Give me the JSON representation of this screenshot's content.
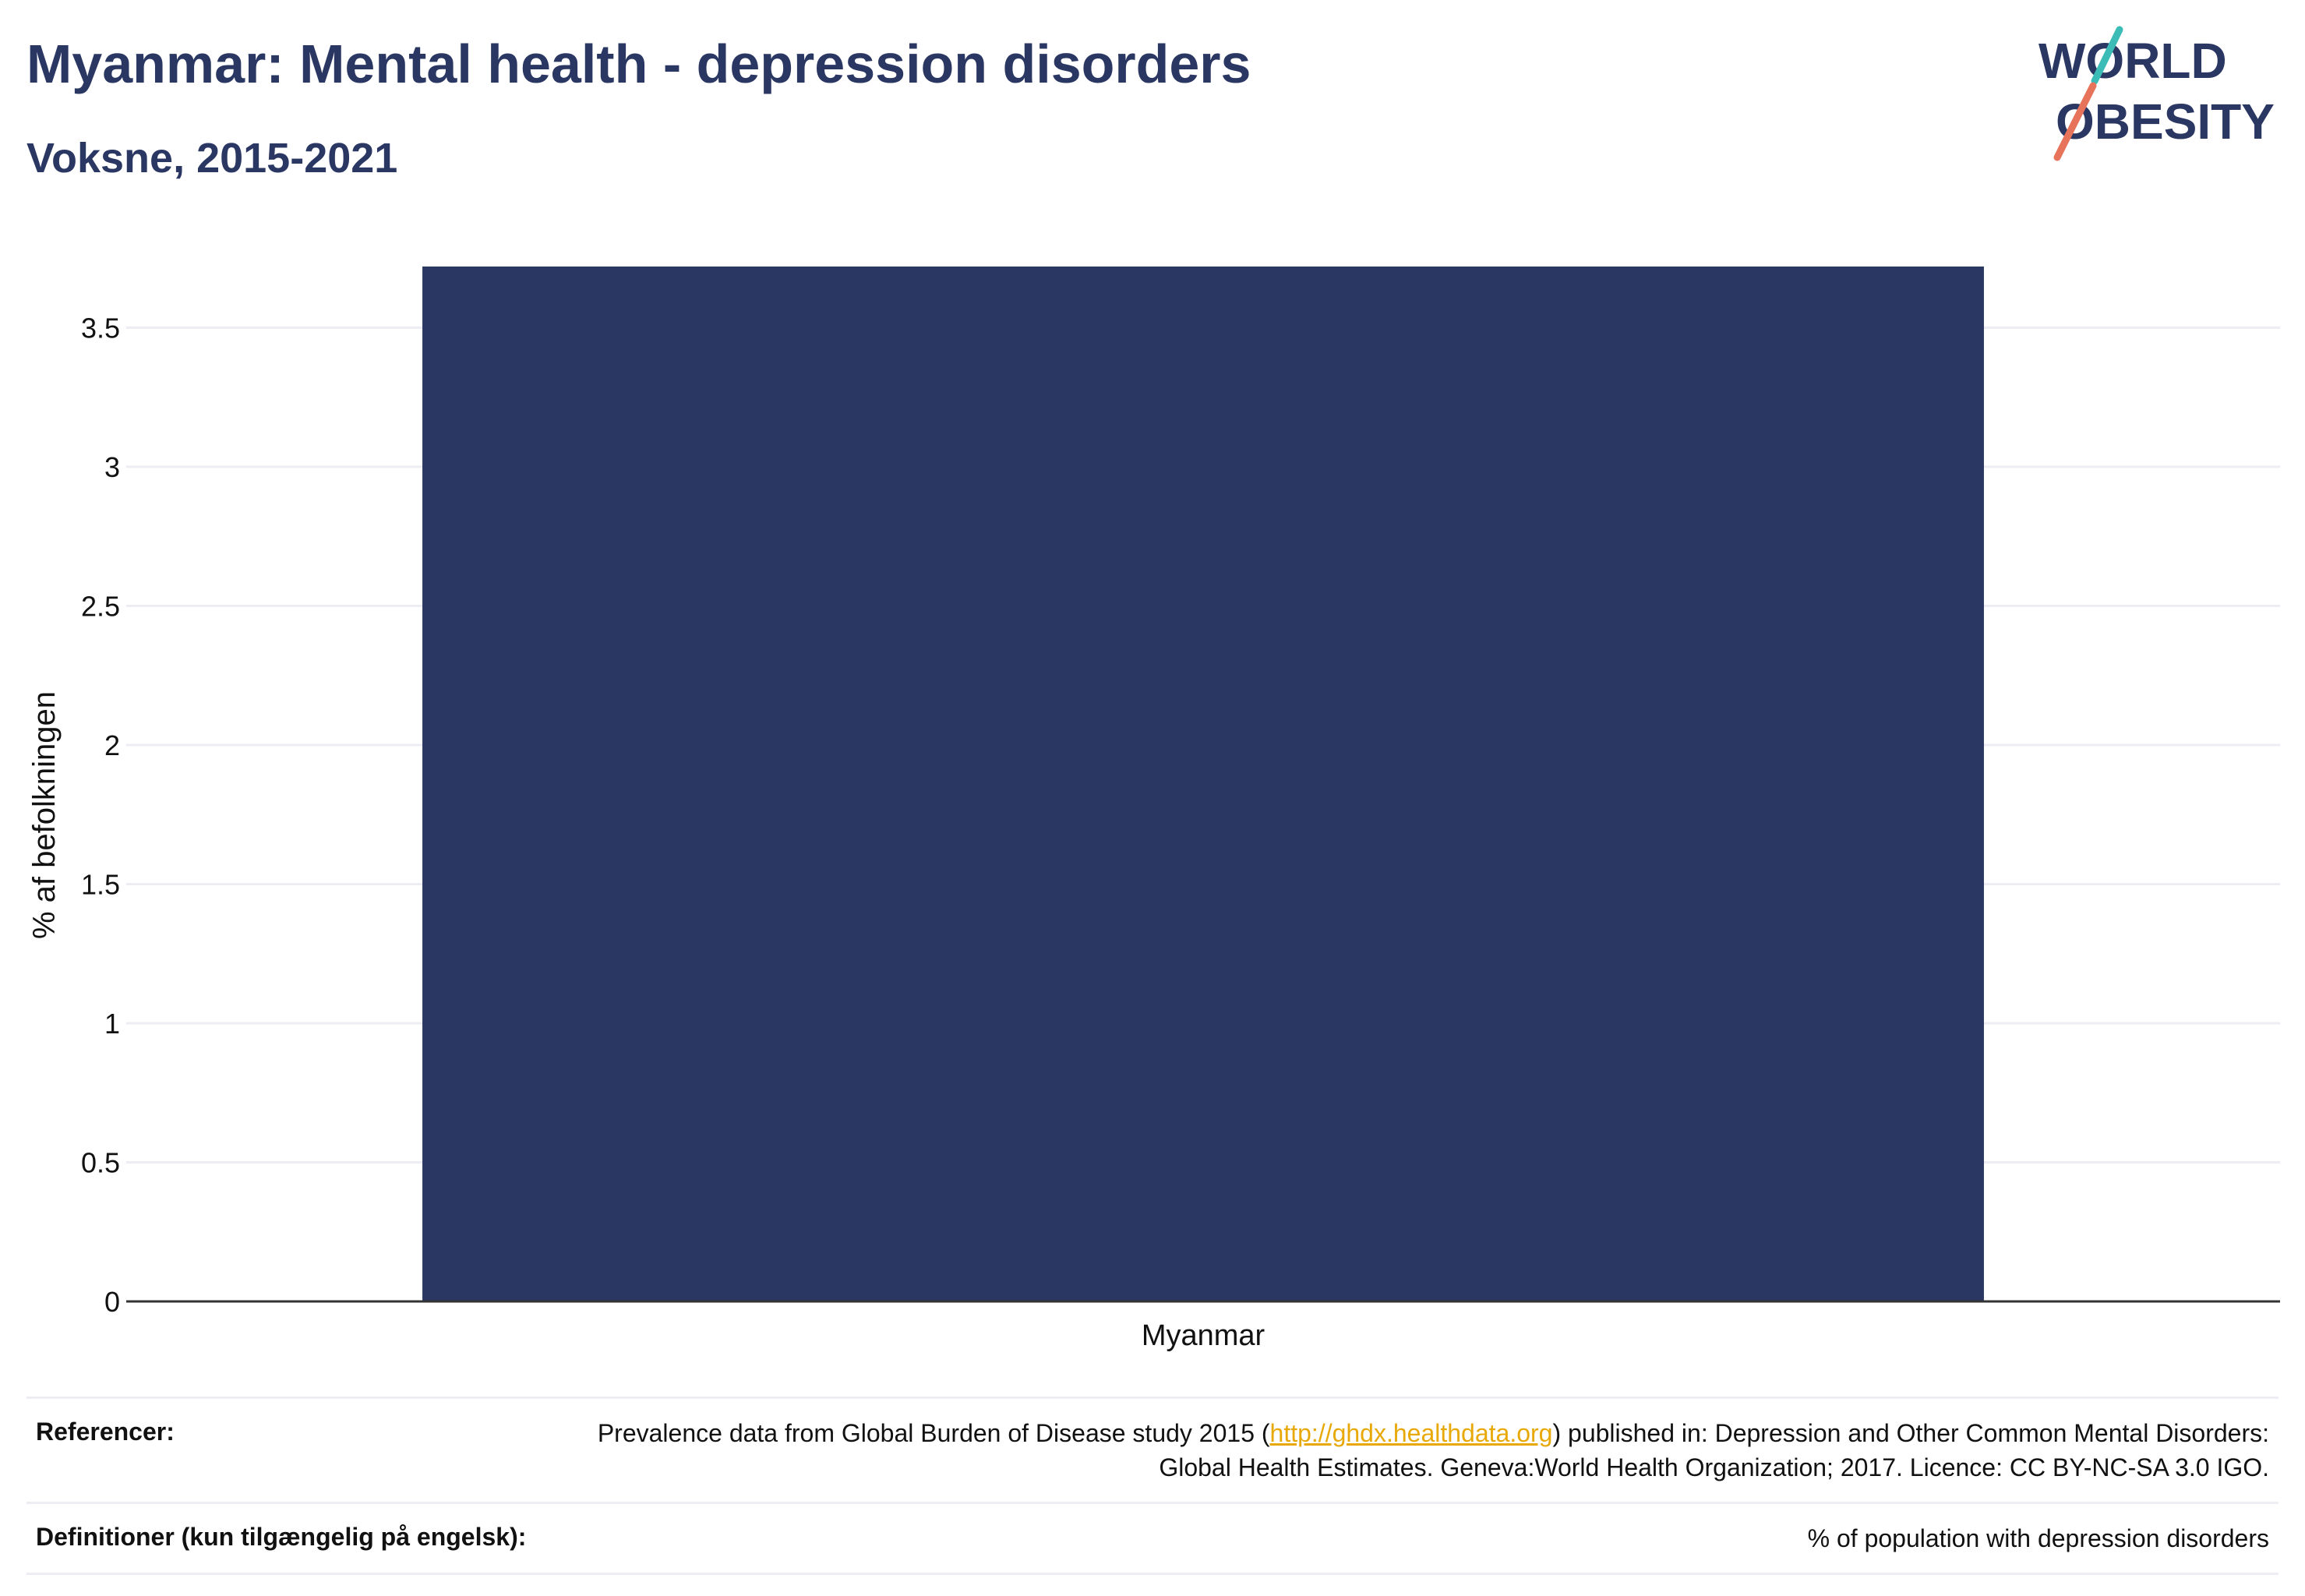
{
  "header": {
    "title": "Myanmar: Mental health - depression disorders",
    "subtitle": "Voksne, 2015-2021"
  },
  "logo": {
    "line1": "WORLD",
    "line2": "OBESITY",
    "colors": {
      "text": "#2b3763",
      "slash_top": "#3cbcb6",
      "slash_bottom": "#e8735b"
    }
  },
  "chart_data": {
    "type": "bar",
    "categories": [
      "Myanmar"
    ],
    "values": [
      3.72
    ],
    "title": "Myanmar: Mental health - depression disorders",
    "subtitle": "Voksne, 2015-2021",
    "xlabel": "",
    "ylabel": "% af befolkningen",
    "ylim": [
      0,
      3.72
    ],
    "yticks": [
      0,
      0.5,
      1,
      1.5,
      2,
      2.5,
      3,
      3.5
    ],
    "ytick_labels": [
      "0",
      "0.5",
      "1",
      "1.5",
      "2",
      "2.5",
      "3",
      "3.5"
    ],
    "grid": true,
    "legend": "none",
    "bar_color": "#2b3763",
    "grid_color": "#eceef3"
  },
  "footer": {
    "references_label": "Referencer:",
    "references_text_before": "Prevalence data from Global Burden of Disease study 2015 (",
    "references_link": "http://ghdx.healthdata.org",
    "references_text_after": ") published in: Depression and Other Common Mental Disorders: Global Health Estimates. Geneva:World Health Organization; 2017. Licence: CC BY-NC-SA 3.0 IGO.",
    "definitions_label": "Definitioner (kun tilgængelig på engelsk):",
    "definitions_text": "% of population with depression disorders"
  }
}
